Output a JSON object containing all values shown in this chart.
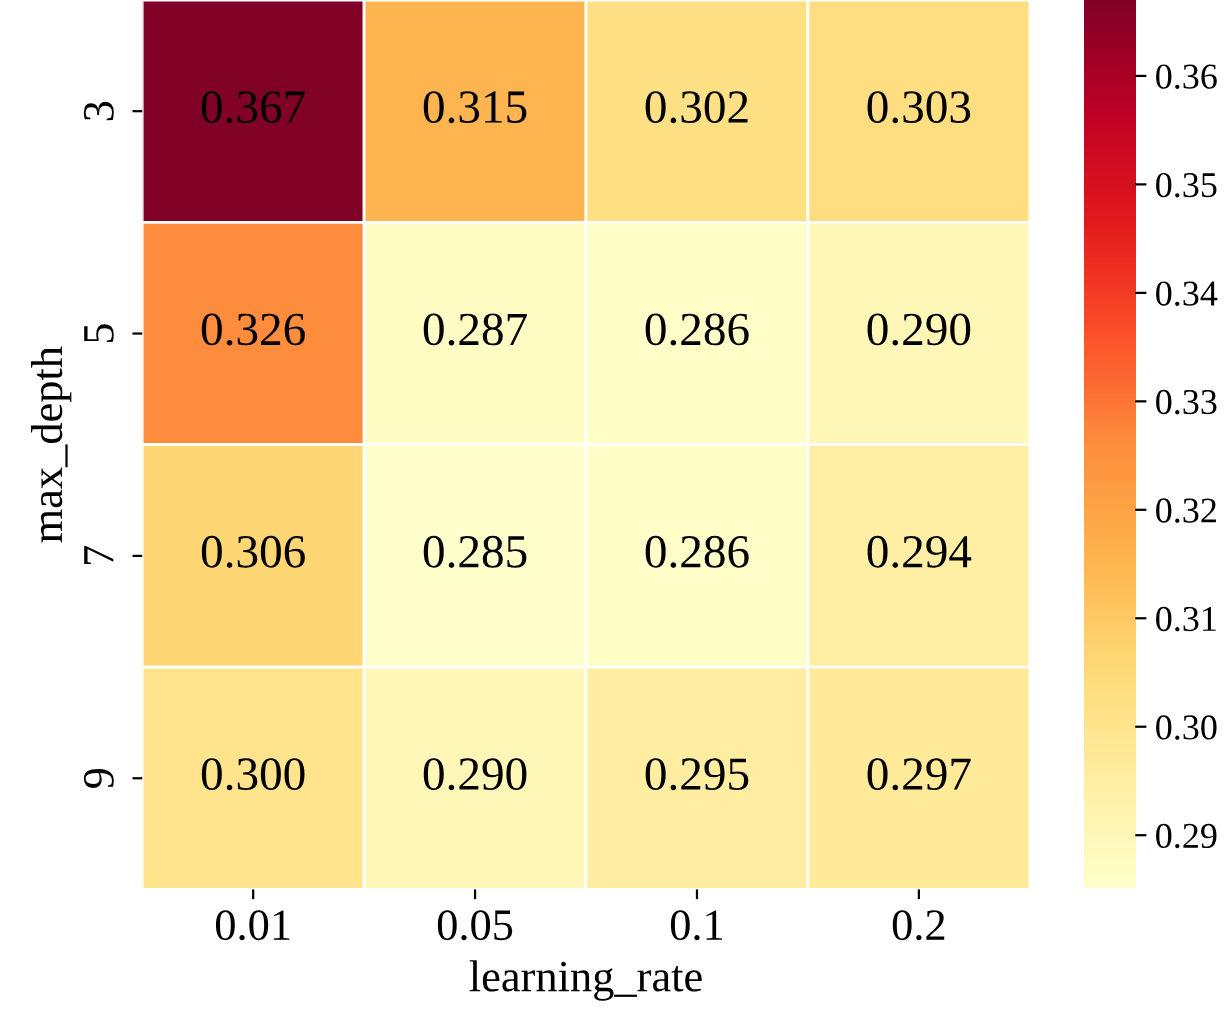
{
  "chart_data": {
    "type": "heatmap",
    "xlabel": "learning_rate",
    "ylabel": "max_depth",
    "categories": [
      "0.01",
      "0.05",
      "0.1",
      "0.2"
    ],
    "y_categories": [
      "3",
      "5",
      "7",
      "9"
    ],
    "cells": [
      [
        0.367,
        0.315,
        0.302,
        0.303
      ],
      [
        0.326,
        0.287,
        0.286,
        0.29
      ],
      [
        0.306,
        0.285,
        0.286,
        0.294
      ],
      [
        0.3,
        0.29,
        0.295,
        0.297
      ]
    ],
    "cell_labels": [
      [
        "0.367",
        "0.315",
        "0.302",
        "0.303"
      ],
      [
        "0.326",
        "0.287",
        "0.286",
        "0.290"
      ],
      [
        "0.306",
        "0.285",
        "0.286",
        "0.294"
      ],
      [
        "0.300",
        "0.290",
        "0.295",
        "0.297"
      ]
    ],
    "clim": [
      0.285,
      0.367
    ],
    "cticks": [
      0.29,
      {
        "value": 0.3,
        "label": "0.30"
      },
      0.31,
      0.32,
      0.33,
      0.34,
      0.35,
      0.36
    ]
  }
}
